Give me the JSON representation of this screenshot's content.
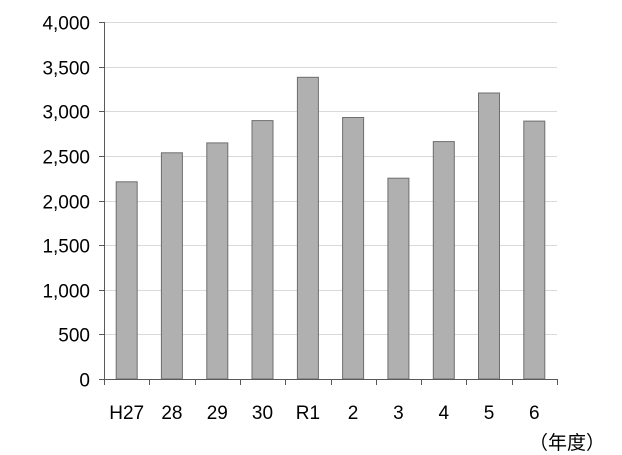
{
  "chart_data": {
    "type": "bar",
    "title": "",
    "xlabel": "（年度）",
    "ylabel": "",
    "categories": [
      "H27",
      "28",
      "29",
      "30",
      "R1",
      "2",
      "3",
      "4",
      "5",
      "6"
    ],
    "values": [
      2210,
      2535,
      2645,
      2895,
      3380,
      2930,
      2250,
      2660,
      3205,
      2890
    ],
    "ylim": [
      0,
      4000
    ],
    "yticks": [
      0,
      500,
      1000,
      1500,
      2000,
      2500,
      3000,
      3500,
      4000
    ],
    "ytick_labels": [
      "0",
      "500",
      "1,000",
      "1,500",
      "2,000",
      "2,500",
      "3,000",
      "3,500",
      "4,000"
    ],
    "grid": true,
    "legend": "none",
    "colors": {
      "bar_fill": "#b0b0b0",
      "bar_stroke": "#6e6e6e",
      "grid": "#d9d9d9",
      "axis": "#595959"
    }
  }
}
